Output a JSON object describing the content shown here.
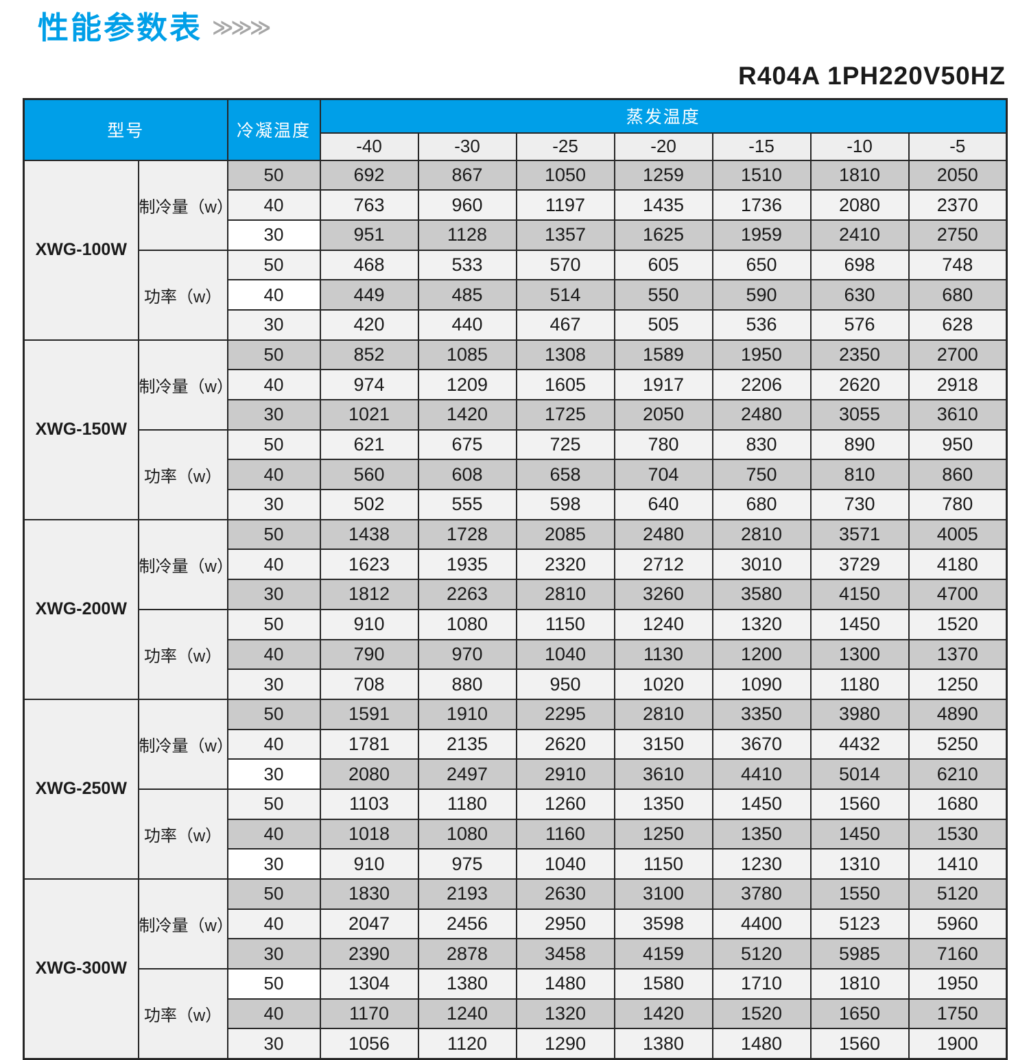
{
  "page": {
    "title": "性能参数表",
    "title_arrows": "≫≫≫",
    "subtitle": "R404A  1PH220V50HZ"
  },
  "colors": {
    "accent_blue": "#009fe8",
    "row_gray": "#cbcbcb",
    "row_light": "#f2f2f2",
    "label_bg": "#f0f0f0",
    "header_temp_bg": "#eeeeee",
    "border": "#262626",
    "arrow_gray": "#a6a6a6"
  },
  "table": {
    "header": {
      "model": "型号",
      "condensing": "冷凝温度",
      "evaporating": "蒸发温度",
      "temps": [
        "-40",
        "-30",
        "-25",
        "-20",
        "-15",
        "-10",
        "-5"
      ]
    },
    "models": [
      {
        "name": "XWG-100W",
        "sections": [
          {
            "label": "制冷量（w）",
            "rows": [
              {
                "cond": "50",
                "shade": "gray",
                "cond_shade": "gray",
                "values": [
                  692,
                  867,
                  1050,
                  1259,
                  1510,
                  1810,
                  2050
                ]
              },
              {
                "cond": "40",
                "shade": "light",
                "cond_shade": "light",
                "values": [
                  763,
                  960,
                  1197,
                  1435,
                  1736,
                  2080,
                  2370
                ]
              },
              {
                "cond": "30",
                "shade": "gray",
                "cond_shade": "white",
                "values": [
                  951,
                  1128,
                  1357,
                  1625,
                  1959,
                  2410,
                  2750
                ]
              }
            ]
          },
          {
            "label": "功率（w）",
            "rows": [
              {
                "cond": "50",
                "shade": "light",
                "cond_shade": "light",
                "values": [
                  468,
                  533,
                  570,
                  605,
                  650,
                  698,
                  748
                ]
              },
              {
                "cond": "40",
                "shade": "gray",
                "cond_shade": "white",
                "values": [
                  449,
                  485,
                  514,
                  550,
                  590,
                  630,
                  680
                ]
              },
              {
                "cond": "30",
                "shade": "light",
                "cond_shade": "light",
                "values": [
                  420,
                  440,
                  467,
                  505,
                  536,
                  576,
                  628
                ]
              }
            ]
          }
        ]
      },
      {
        "name": "XWG-150W",
        "sections": [
          {
            "label": "制冷量（w）",
            "rows": [
              {
                "cond": "50",
                "shade": "gray",
                "cond_shade": "gray",
                "values": [
                  852,
                  1085,
                  1308,
                  1589,
                  1950,
                  2350,
                  2700
                ]
              },
              {
                "cond": "40",
                "shade": "light",
                "cond_shade": "light",
                "values": [
                  974,
                  1209,
                  1605,
                  1917,
                  2206,
                  2620,
                  2918
                ]
              },
              {
                "cond": "30",
                "shade": "gray",
                "cond_shade": "gray",
                "values": [
                  1021,
                  1420,
                  1725,
                  2050,
                  2480,
                  3055,
                  3610
                ]
              }
            ]
          },
          {
            "label": "功率（w）",
            "rows": [
              {
                "cond": "50",
                "shade": "light",
                "cond_shade": "light",
                "values": [
                  621,
                  675,
                  725,
                  780,
                  830,
                  890,
                  950
                ]
              },
              {
                "cond": "40",
                "shade": "gray",
                "cond_shade": "gray",
                "values": [
                  560,
                  608,
                  658,
                  704,
                  750,
                  810,
                  860
                ]
              },
              {
                "cond": "30",
                "shade": "light",
                "cond_shade": "light",
                "values": [
                  502,
                  555,
                  598,
                  640,
                  680,
                  730,
                  780
                ]
              }
            ]
          }
        ]
      },
      {
        "name": "XWG-200W",
        "sections": [
          {
            "label": "制冷量（w）",
            "rows": [
              {
                "cond": "50",
                "shade": "gray",
                "cond_shade": "gray",
                "values": [
                  1438,
                  1728,
                  2085,
                  2480,
                  2810,
                  3571,
                  4005
                ]
              },
              {
                "cond": "40",
                "shade": "light",
                "cond_shade": "light",
                "values": [
                  1623,
                  1935,
                  2320,
                  2712,
                  3010,
                  3729,
                  4180
                ]
              },
              {
                "cond": "30",
                "shade": "gray",
                "cond_shade": "gray",
                "values": [
                  1812,
                  2263,
                  2810,
                  3260,
                  3580,
                  4150,
                  4700
                ]
              }
            ]
          },
          {
            "label": "功率（w）",
            "rows": [
              {
                "cond": "50",
                "shade": "light",
                "cond_shade": "light",
                "values": [
                  910,
                  1080,
                  1150,
                  1240,
                  1320,
                  1450,
                  1520
                ]
              },
              {
                "cond": "40",
                "shade": "gray",
                "cond_shade": "gray",
                "values": [
                  790,
                  970,
                  1040,
                  1130,
                  1200,
                  1300,
                  1370
                ]
              },
              {
                "cond": "30",
                "shade": "light",
                "cond_shade": "light",
                "values": [
                  708,
                  880,
                  950,
                  1020,
                  1090,
                  1180,
                  1250
                ]
              }
            ]
          }
        ]
      },
      {
        "name": "XWG-250W",
        "sections": [
          {
            "label": "制冷量（w）",
            "rows": [
              {
                "cond": "50",
                "shade": "gray",
                "cond_shade": "gray",
                "values": [
                  1591,
                  1910,
                  2295,
                  2810,
                  3350,
                  3980,
                  4890
                ]
              },
              {
                "cond": "40",
                "shade": "light",
                "cond_shade": "light",
                "values": [
                  1781,
                  2135,
                  2620,
                  3150,
                  3670,
                  4432,
                  5250
                ]
              },
              {
                "cond": "30",
                "shade": "gray",
                "cond_shade": "white",
                "values": [
                  2080,
                  2497,
                  2910,
                  3610,
                  4410,
                  5014,
                  6210
                ]
              }
            ]
          },
          {
            "label": "功率（w）",
            "rows": [
              {
                "cond": "50",
                "shade": "light",
                "cond_shade": "light",
                "values": [
                  1103,
                  1180,
                  1260,
                  1350,
                  1450,
                  1560,
                  1680
                ]
              },
              {
                "cond": "40",
                "shade": "gray",
                "cond_shade": "gray",
                "values": [
                  1018,
                  1080,
                  1160,
                  1250,
                  1350,
                  1450,
                  1530
                ]
              },
              {
                "cond": "30",
                "shade": "light",
                "cond_shade": "white",
                "values": [
                  910,
                  975,
                  1040,
                  1150,
                  1230,
                  1310,
                  1410
                ]
              }
            ]
          }
        ]
      },
      {
        "name": "XWG-300W",
        "sections": [
          {
            "label": "制冷量（w）",
            "rows": [
              {
                "cond": "50",
                "shade": "gray",
                "cond_shade": "gray",
                "values": [
                  1830,
                  2193,
                  2630,
                  3100,
                  3780,
                  1550,
                  5120
                ]
              },
              {
                "cond": "40",
                "shade": "light",
                "cond_shade": "light",
                "values": [
                  2047,
                  2456,
                  2950,
                  3598,
                  4400,
                  5123,
                  5960
                ]
              },
              {
                "cond": "30",
                "shade": "gray",
                "cond_shade": "gray",
                "values": [
                  2390,
                  2878,
                  3458,
                  4159,
                  5120,
                  5985,
                  7160
                ]
              }
            ]
          },
          {
            "label": "功率（w）",
            "rows": [
              {
                "cond": "50",
                "shade": "light",
                "cond_shade": "white",
                "values": [
                  1304,
                  1380,
                  1480,
                  1580,
                  1710,
                  1810,
                  1950
                ]
              },
              {
                "cond": "40",
                "shade": "gray",
                "cond_shade": "gray",
                "values": [
                  1170,
                  1240,
                  1320,
                  1420,
                  1520,
                  1650,
                  1750
                ]
              },
              {
                "cond": "30",
                "shade": "light",
                "cond_shade": "light",
                "values": [
                  1056,
                  1120,
                  1290,
                  1380,
                  1480,
                  1560,
                  1900
                ]
              }
            ]
          }
        ]
      }
    ]
  }
}
